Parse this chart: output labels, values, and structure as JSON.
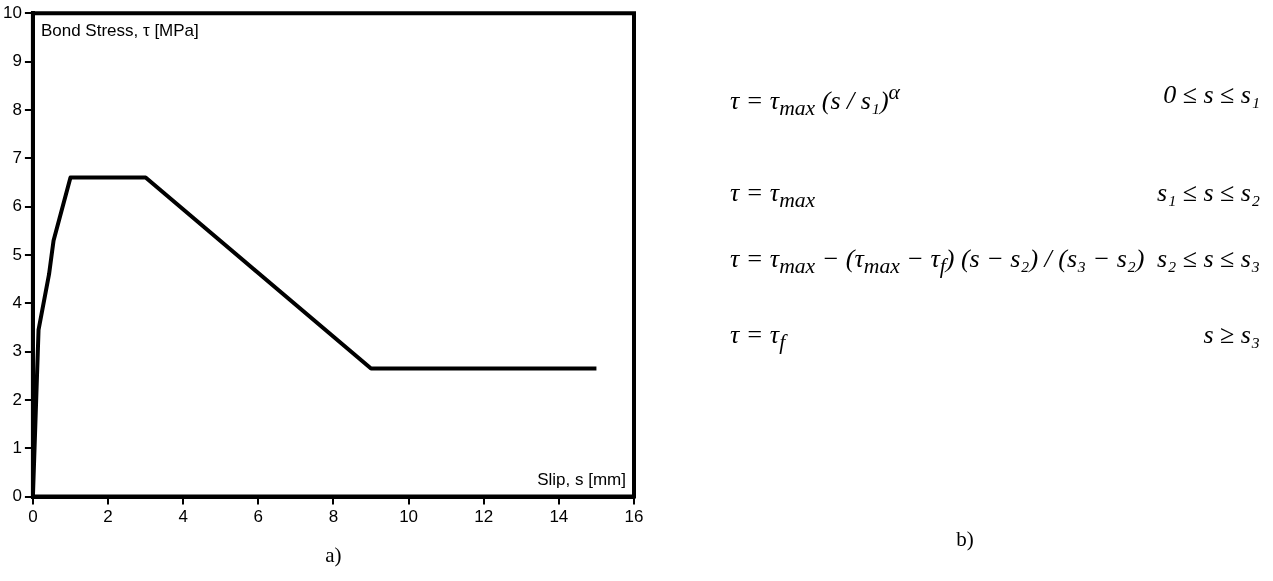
{
  "chart_data": [
    {
      "type": "line",
      "xlabel": "Slip, s [mm]",
      "ylabel": "Bond Stress, τ [MPa]",
      "x": [
        0,
        0.15,
        0.43,
        0.55,
        1,
        3,
        9,
        15
      ],
      "values": [
        0,
        3.45,
        4.6,
        5.3,
        6.6,
        6.6,
        2.65,
        2.65
      ],
      "color": "#000000",
      "marker": "none",
      "line_style": "solid",
      "xlim": [
        0,
        16
      ],
      "xticks": [
        0,
        2,
        4,
        6,
        8,
        10,
        12,
        14,
        16
      ],
      "ylim": [
        0,
        10
      ],
      "yticks": [
        0,
        1,
        2,
        3,
        4,
        5,
        6,
        7,
        8,
        9,
        10
      ],
      "grid": false,
      "legend": false,
      "annotations": [
        "a)"
      ]
    },
    {
      "type": "other",
      "annotations": [
        "τ = τ$_{max}$ (s / s₁)$^{α}$",
        "0 ≤ s ≤ s₁",
        "τ = τ$_{max}$",
        "s₁ ≤ s ≤ s₂",
        "τ = τ$_{max}$ − (τ$_{max}$ − τ$_{f}$) (s − s₂) / (s₃ − s₂)",
        "s₂ ≤ s ≤ s₃",
        "τ = τ$_{f}$",
        "s ≥ s₃",
        "b)"
      ]
    }
  ]
}
